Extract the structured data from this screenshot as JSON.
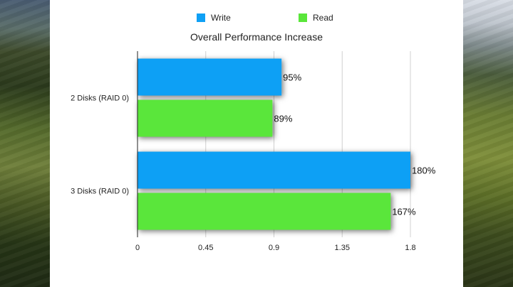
{
  "chart_data": {
    "type": "bar",
    "orientation": "horizontal",
    "title": "Overall Performance Increase",
    "categories": [
      "2 Disks (RAID 0)",
      "3 Disks (RAID 0)"
    ],
    "series": [
      {
        "name": "Write",
        "color": "#0fa0f5",
        "values": [
          0.95,
          1.8
        ],
        "labels": [
          "95%",
          "180%"
        ]
      },
      {
        "name": "Read",
        "color": "#5ae63a",
        "values": [
          0.89,
          1.67
        ],
        "labels": [
          "89%",
          "167%"
        ]
      }
    ],
    "xlim": [
      0,
      1.8
    ],
    "xticks": [
      "0",
      "0.45",
      "0.9",
      "1.35",
      "1.8"
    ],
    "grid": true,
    "legend_position": "top"
  }
}
